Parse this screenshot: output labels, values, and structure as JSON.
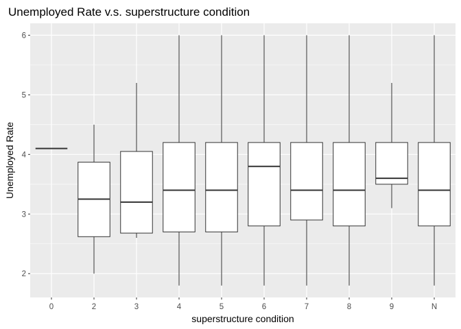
{
  "chart_data": {
    "type": "box",
    "title": "Unemployed Rate v.s. superstructure condition",
    "xlabel": "superstructure condition",
    "ylabel": "Unemployed Rate",
    "categories": [
      "0",
      "2",
      "3",
      "4",
      "5",
      "6",
      "7",
      "8",
      "9",
      "N"
    ],
    "ylim": [
      1.6,
      6.2
    ],
    "yticks": [
      2,
      3,
      4,
      5,
      6
    ],
    "boxes": [
      {
        "category": "0",
        "min": 4.1,
        "q1": 4.1,
        "median": 4.1,
        "q3": 4.1,
        "max": 4.1
      },
      {
        "category": "2",
        "min": 2.0,
        "q1": 2.62,
        "median": 3.25,
        "q3": 3.87,
        "max": 4.5
      },
      {
        "category": "3",
        "min": 2.6,
        "q1": 2.68,
        "median": 3.2,
        "q3": 4.05,
        "max": 5.2
      },
      {
        "category": "4",
        "min": 1.8,
        "q1": 2.7,
        "median": 3.4,
        "q3": 4.2,
        "max": 6.0
      },
      {
        "category": "5",
        "min": 1.8,
        "q1": 2.7,
        "median": 3.4,
        "q3": 4.2,
        "max": 6.0
      },
      {
        "category": "6",
        "min": 1.8,
        "q1": 2.8,
        "median": 3.8,
        "q3": 4.2,
        "max": 6.0
      },
      {
        "category": "7",
        "min": 1.8,
        "q1": 2.9,
        "median": 3.4,
        "q3": 4.2,
        "max": 6.0
      },
      {
        "category": "8",
        "min": 1.8,
        "q1": 2.8,
        "median": 3.4,
        "q3": 4.2,
        "max": 6.0
      },
      {
        "category": "9",
        "min": 3.1,
        "q1": 3.5,
        "median": 3.6,
        "q3": 4.2,
        "max": 5.2
      },
      {
        "category": "N",
        "min": 1.8,
        "q1": 2.8,
        "median": 3.4,
        "q3": 4.2,
        "max": 6.0
      }
    ],
    "grid": true,
    "background": "#ebebeb",
    "gridline_color": "#ffffff",
    "box_fill": "#ffffff",
    "box_stroke": "#333333"
  }
}
